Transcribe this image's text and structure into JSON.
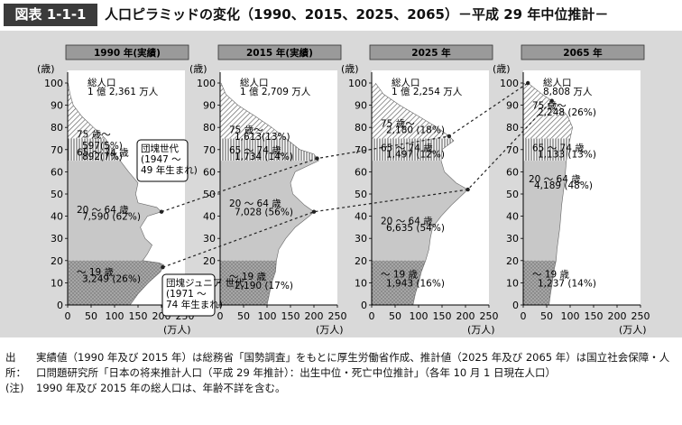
{
  "header": {
    "figure_no": "図表 1-1-1",
    "title": "人口ピラミッドの変化（1990、2015、2025、2065）－平成 29 年中位推計－"
  },
  "chart_data": {
    "type": "area",
    "y_unit": "(歳)",
    "x_unit": "(万人)",
    "x_ticks": [
      0,
      50,
      100,
      150,
      200,
      250
    ],
    "y_ticks": [
      0,
      10,
      20,
      30,
      40,
      50,
      60,
      70,
      80,
      90,
      100
    ],
    "xlim": [
      0,
      250
    ],
    "ylim": [
      0,
      100
    ],
    "panels": [
      {
        "title": "1990 年(実績)",
        "total_label": "総人口",
        "total_value": "1 億 2,361 万人",
        "groups": [
          {
            "label": "75 歳～",
            "value": "597(5%)"
          },
          {
            "label": "65 ～ 74 歳",
            "value": "892(7%)"
          },
          {
            "label": "20 ～ 64 歳",
            "value": "7,590 (62%)"
          },
          {
            "label": "～ 19 歳",
            "value": "3,249 (26%)"
          }
        ],
        "profile": [
          [
            0,
            133
          ],
          [
            5,
            150
          ],
          [
            10,
            172
          ],
          [
            15,
            198
          ],
          [
            18,
            205
          ],
          [
            19,
            195
          ],
          [
            20,
            160
          ],
          [
            23,
            170
          ],
          [
            27,
            180
          ],
          [
            30,
            165
          ],
          [
            35,
            155
          ],
          [
            40,
            170
          ],
          [
            42,
            200
          ],
          [
            44,
            190
          ],
          [
            46,
            150
          ],
          [
            50,
            145
          ],
          [
            55,
            150
          ],
          [
            60,
            130
          ],
          [
            65,
            112
          ],
          [
            70,
            95
          ],
          [
            75,
            80
          ],
          [
            80,
            55
          ],
          [
            85,
            30
          ],
          [
            90,
            12
          ],
          [
            95,
            5
          ],
          [
            100,
            1
          ]
        ]
      },
      {
        "title": "2015 年(実績)",
        "total_label": "総人口",
        "total_value": "1 億 2,709 万人",
        "groups": [
          {
            "label": "75 歳～",
            "value": "1,613(13%)"
          },
          {
            "label": "65 ～ 74 歳",
            "value": "1,734 (14%)"
          },
          {
            "label": "20 ～ 64 歳",
            "value": "7,028 (56%)"
          },
          {
            "label": "～ 19 歳",
            "value": "2,190 (17%)"
          }
        ],
        "profile": [
          [
            0,
            100
          ],
          [
            5,
            105
          ],
          [
            10,
            110
          ],
          [
            15,
            118
          ],
          [
            20,
            120
          ],
          [
            25,
            125
          ],
          [
            30,
            140
          ],
          [
            35,
            160
          ],
          [
            40,
            190
          ],
          [
            42,
            200
          ],
          [
            45,
            180
          ],
          [
            50,
            155
          ],
          [
            55,
            150
          ],
          [
            60,
            160
          ],
          [
            65,
            210
          ],
          [
            68,
            200
          ],
          [
            70,
            170
          ],
          [
            75,
            140
          ],
          [
            80,
            110
          ],
          [
            85,
            75
          ],
          [
            90,
            38
          ],
          [
            95,
            12
          ],
          [
            100,
            2
          ]
        ]
      },
      {
        "title": "2025 年",
        "total_label": "総人口",
        "total_value": "1 億 2,254 万人",
        "groups": [
          {
            "label": "75 歳～",
            "value": "2,180 (18%)"
          },
          {
            "label": "65 ～ 74 歳",
            "value": "1,497 (12%)"
          },
          {
            "label": "20 ～ 64 歳",
            "value": "6,635 (54%)"
          },
          {
            "label": "～ 19 歳",
            "value": "1,943 (16%)"
          }
        ],
        "profile": [
          [
            0,
            88
          ],
          [
            5,
            93
          ],
          [
            10,
            100
          ],
          [
            15,
            106
          ],
          [
            20,
            115
          ],
          [
            25,
            122
          ],
          [
            30,
            125
          ],
          [
            35,
            130
          ],
          [
            40,
            148
          ],
          [
            45,
            170
          ],
          [
            50,
            195
          ],
          [
            52,
            205
          ],
          [
            55,
            180
          ],
          [
            60,
            155
          ],
          [
            65,
            148
          ],
          [
            70,
            150
          ],
          [
            74,
            175
          ],
          [
            76,
            165
          ],
          [
            80,
            140
          ],
          [
            85,
            100
          ],
          [
            90,
            60
          ],
          [
            95,
            25
          ],
          [
            100,
            8
          ]
        ]
      },
      {
        "title": "2065 年",
        "total_label": "総人口",
        "total_value": "8,808 万人",
        "groups": [
          {
            "label": "75 歳～",
            "value": "2,248 (26%)"
          },
          {
            "label": "65 ～ 74 歳",
            "value": "1,133 (13%)"
          },
          {
            "label": "20 ～ 64 歳",
            "value": "4,189 (48%)"
          },
          {
            "label": "～ 19 歳",
            "value": "1,237 (14%)"
          }
        ],
        "profile": [
          [
            0,
            55
          ],
          [
            5,
            58
          ],
          [
            10,
            62
          ],
          [
            15,
            65
          ],
          [
            20,
            70
          ],
          [
            25,
            72
          ],
          [
            30,
            75
          ],
          [
            35,
            78
          ],
          [
            40,
            80
          ],
          [
            45,
            82
          ],
          [
            50,
            85
          ],
          [
            55,
            88
          ],
          [
            60,
            90
          ],
          [
            65,
            92
          ],
          [
            70,
            95
          ],
          [
            75,
            100
          ],
          [
            80,
            105
          ],
          [
            85,
            95
          ],
          [
            90,
            75
          ],
          [
            95,
            40
          ],
          [
            100,
            10
          ]
        ]
      }
    ],
    "annotations": {
      "baby_boom": "団塊世代 (1947 ～ 49 年生まれ)",
      "baby_boom_junior": "団塊ジュニア 世代 (1971 ～ 74 年生まれ)"
    }
  },
  "notes": [
    {
      "label": "出所：",
      "text": "実績値（1990 年及び 2015 年）は総務省「国勢調査」をもとに厚生労働省作成、推計値（2025 年及び 2065 年）は国立社会保障・人口問題研究所「日本の将来推計人口（平成 29 年推計）：出生中位・死亡中位推計」（各年 10 月 1 日現在人口）"
    },
    {
      "label": "(注)",
      "text": "1990 年及び 2015 年の総人口は、年齢不詳を含む。"
    }
  ]
}
